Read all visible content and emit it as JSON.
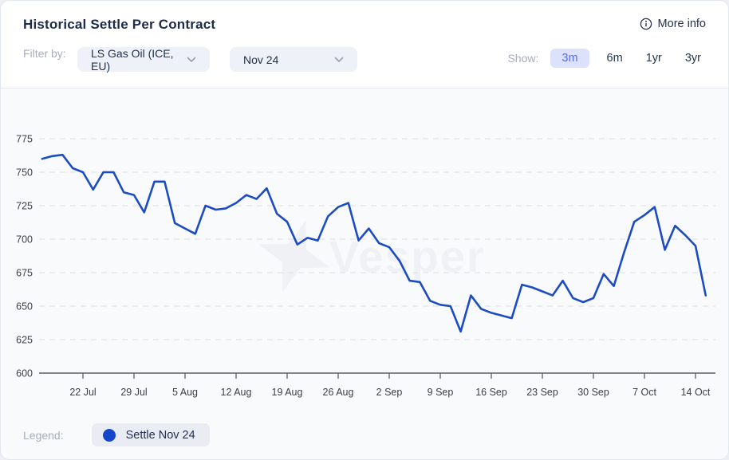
{
  "header": {
    "title": "Historical Settle Per Contract",
    "more_info_label": "More info",
    "filter_label": "Filter by:",
    "filters": [
      {
        "value": "LS Gas Oil (ICE, EU)"
      },
      {
        "value": "Nov 24"
      }
    ],
    "show_label": "Show:",
    "ranges": [
      {
        "label": "3m",
        "active": true
      },
      {
        "label": "6m",
        "active": false
      },
      {
        "label": "1yr",
        "active": false
      },
      {
        "label": "3yr",
        "active": false
      }
    ]
  },
  "legend": {
    "label": "Legend:",
    "items": [
      {
        "label": "Settle Nov 24",
        "color": "#1547c8"
      }
    ]
  },
  "watermark": {
    "text": "Vesper"
  },
  "colors": {
    "line": "#1c4cc3",
    "accent_chip_bg": "#dce2fb",
    "accent_chip_text": "#5a6ae8",
    "grid": "#e2e4e8",
    "axis": "#5c6066",
    "title_text": "#1d2c4c",
    "muted_text": "#a6adbb",
    "watermark": "#f0f1f4"
  },
  "chart_data": {
    "type": "line",
    "title": "Historical Settle Per Contract",
    "xlabel": "",
    "ylabel": "",
    "ylim": [
      600,
      775
    ],
    "yticks": [
      600,
      625,
      650,
      675,
      700,
      725,
      750,
      775
    ],
    "xtick_labels": [
      "22 Jul",
      "29 Jul",
      "5 Aug",
      "12 Aug",
      "19 Aug",
      "26 Aug",
      "2 Sep",
      "9 Sep",
      "16 Sep",
      "23 Sep",
      "30 Sep",
      "7 Oct",
      "14 Oct"
    ],
    "grid": "horizontal-dashed",
    "legend_position": "bottom-left",
    "series": [
      {
        "name": "Settle Nov 24",
        "color": "#1c4cc3",
        "x": [
          "16 Jul",
          "17 Jul",
          "18 Jul",
          "19 Jul",
          "22 Jul",
          "23 Jul",
          "24 Jul",
          "25 Jul",
          "26 Jul",
          "29 Jul",
          "30 Jul",
          "31 Jul",
          "1 Aug",
          "2 Aug",
          "5 Aug",
          "6 Aug",
          "7 Aug",
          "8 Aug",
          "9 Aug",
          "12 Aug",
          "13 Aug",
          "14 Aug",
          "15 Aug",
          "16 Aug",
          "19 Aug",
          "20 Aug",
          "21 Aug",
          "22 Aug",
          "23 Aug",
          "26 Aug",
          "27 Aug",
          "28 Aug",
          "29 Aug",
          "30 Aug",
          "2 Sep",
          "3 Sep",
          "4 Sep",
          "5 Sep",
          "6 Sep",
          "9 Sep",
          "10 Sep",
          "11 Sep",
          "12 Sep",
          "13 Sep",
          "16 Sep",
          "17 Sep",
          "18 Sep",
          "19 Sep",
          "20 Sep",
          "23 Sep",
          "24 Sep",
          "25 Sep",
          "26 Sep",
          "27 Sep",
          "30 Sep",
          "1 Oct",
          "2 Oct",
          "3 Oct",
          "4 Oct",
          "7 Oct",
          "8 Oct",
          "9 Oct",
          "10 Oct",
          "11 Oct",
          "14 Oct",
          "15 Oct"
        ],
        "values": [
          760,
          762,
          763,
          753,
          750,
          737,
          750,
          750,
          735,
          733,
          720,
          743,
          743,
          712,
          708,
          704,
          725,
          722,
          723,
          727,
          733,
          730,
          738,
          719,
          713,
          696,
          701,
          699,
          717,
          724,
          727,
          699,
          708,
          697,
          694,
          684,
          669,
          668,
          654,
          651,
          650,
          631,
          658,
          648,
          645,
          643,
          641,
          666,
          664,
          661,
          658,
          669,
          656,
          653,
          656,
          674,
          665,
          690,
          713,
          718,
          724,
          692,
          710,
          703,
          695,
          658
        ]
      }
    ]
  }
}
